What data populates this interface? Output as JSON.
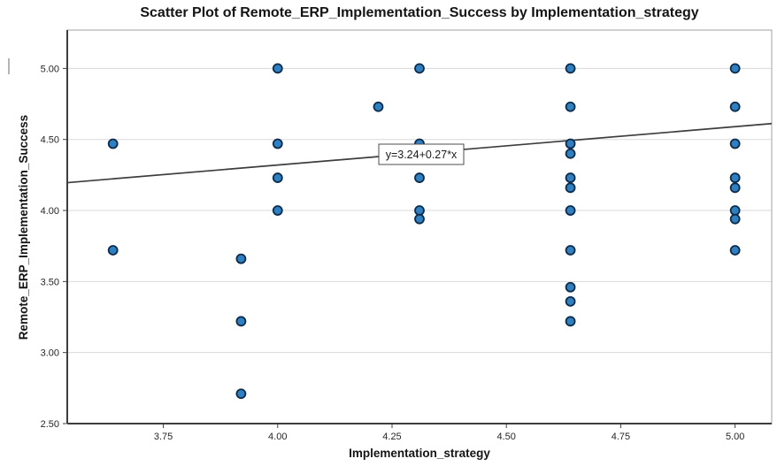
{
  "title": "Scatter Plot of Remote_ERP_Implementation_Success by Implementation_strategy",
  "chart_data": {
    "type": "scatter",
    "title": "Scatter Plot of Remote_ERP_Implementation_Success by Implementation_strategy",
    "xlabel": "Implementation_strategy",
    "ylabel": "Remote_ERP_Implementation_Success",
    "xlim": [
      3.54,
      5.08
    ],
    "ylim": [
      2.5,
      5.27
    ],
    "x_ticks": [
      "3.75",
      "4.00",
      "4.25",
      "4.50",
      "4.75",
      "5.00"
    ],
    "y_ticks": [
      "5.00",
      "4.50",
      "4.00",
      "3.50",
      "3.00",
      "2.50"
    ],
    "grid": "horizontal-only",
    "legend": "none",
    "points": [
      [
        3.64,
        4.47
      ],
      [
        3.64,
        3.72
      ],
      [
        3.92,
        3.66
      ],
      [
        3.92,
        3.22
      ],
      [
        3.92,
        2.71
      ],
      [
        4.0,
        5.0
      ],
      [
        4.0,
        4.47
      ],
      [
        4.0,
        4.23
      ],
      [
        4.0,
        4.0
      ],
      [
        4.22,
        4.73
      ],
      [
        4.31,
        5.0
      ],
      [
        4.31,
        4.47
      ],
      [
        4.31,
        4.23
      ],
      [
        4.31,
        4.0
      ],
      [
        4.31,
        3.94
      ],
      [
        4.64,
        5.0
      ],
      [
        4.64,
        4.73
      ],
      [
        4.64,
        4.47
      ],
      [
        4.64,
        4.4
      ],
      [
        4.64,
        4.23
      ],
      [
        4.64,
        4.16
      ],
      [
        4.64,
        4.0
      ],
      [
        4.64,
        3.72
      ],
      [
        4.64,
        3.46
      ],
      [
        4.64,
        3.36
      ],
      [
        4.64,
        3.22
      ],
      [
        5.0,
        5.0
      ],
      [
        5.0,
        4.73
      ],
      [
        5.0,
        4.47
      ],
      [
        5.0,
        4.23
      ],
      [
        5.0,
        4.16
      ],
      [
        5.0,
        4.0
      ],
      [
        5.0,
        3.94
      ],
      [
        5.0,
        3.72
      ]
    ],
    "fit_line": {
      "equation_label": "y=3.24+0.27*x",
      "intercept": 3.24,
      "slope": 0.27
    },
    "colors": {
      "point_fill": "#2e80c0",
      "point_stroke": "#0c2c4e",
      "grid": "#d9d9d9",
      "frame": "#a3a3a3",
      "axis": "#3d3d3d",
      "fit_line": "#3d3d3d",
      "tick_text": "#262626",
      "annotation_border": "#4d4d4d",
      "annotation_bg": "#ffffff"
    }
  }
}
